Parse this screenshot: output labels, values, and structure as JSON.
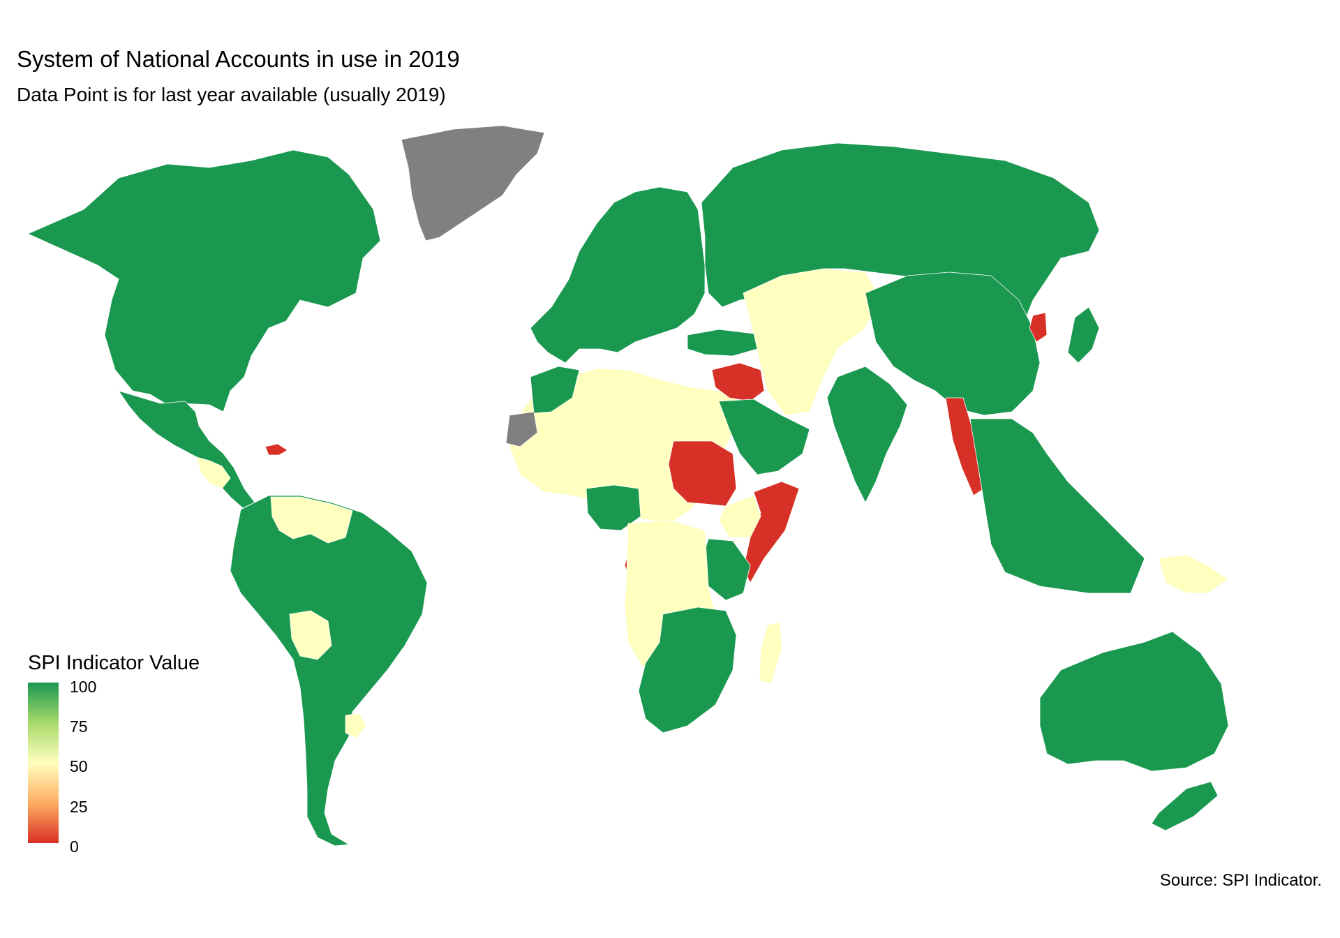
{
  "title": "System of National Accounts in use in 2019",
  "subtitle": "Data Point is for last year available (usually 2019)",
  "caption": "Source: SPI Indicator.",
  "legend": {
    "title": "SPI Indicator Value",
    "labels": [
      "100",
      "75",
      "50",
      "25",
      "0"
    ],
    "colors": [
      "#1a9850",
      "#a6d96a",
      "#ffffbf",
      "#fdae61",
      "#d73027"
    ]
  },
  "colors": {
    "high": "#1a9850",
    "mid": "#ffffbf",
    "low": "#d73027",
    "no_data": "#808080",
    "no_data_light": "#cccccc",
    "background": "#ffffff"
  },
  "regions": [
    {
      "name": "North America",
      "value": 100
    },
    {
      "name": "Greenland",
      "value": null
    },
    {
      "name": "Central America and Mexico",
      "value": 100
    },
    {
      "name": "Guatemala / Honduras",
      "value": 50
    },
    {
      "name": "Haiti / Dominican Republic",
      "value": 0
    },
    {
      "name": "South America",
      "value": 100
    },
    {
      "name": "Venezuela / Guyana",
      "value": 50
    },
    {
      "name": "Bolivia",
      "value": 50
    },
    {
      "name": "Uruguay",
      "value": 50
    },
    {
      "name": "Europe",
      "value": 100
    },
    {
      "name": "Russia",
      "value": 100
    },
    {
      "name": "North and West Africa",
      "value": 50
    },
    {
      "name": "Western Sahara",
      "value": null
    },
    {
      "name": "Morocco",
      "value": 100
    },
    {
      "name": "Nigeria / Ghana",
      "value": 100
    },
    {
      "name": "Sudan",
      "value": 0
    },
    {
      "name": "Somalia",
      "value": 0
    },
    {
      "name": "Ethiopia",
      "value": 50
    },
    {
      "name": "East Africa",
      "value": 100
    },
    {
      "name": "Congo",
      "value": 0
    },
    {
      "name": "Central Africa",
      "value": 50
    },
    {
      "name": "Southern Africa",
      "value": 100
    },
    {
      "name": "Madagascar",
      "value": 50
    },
    {
      "name": "Middle East (Syria / Iraq)",
      "value": 0
    },
    {
      "name": "Arabian Peninsula",
      "value": 100
    },
    {
      "name": "Central Asia / Iran",
      "value": 50
    },
    {
      "name": "Turkey",
      "value": 100
    },
    {
      "name": "India",
      "value": 100
    },
    {
      "name": "China / Mongolia",
      "value": 100
    },
    {
      "name": "North Korea",
      "value": 0
    },
    {
      "name": "Japan",
      "value": 100
    },
    {
      "name": "Myanmar",
      "value": 0
    },
    {
      "name": "Southeast Asia",
      "value": 100
    },
    {
      "name": "Papua New Guinea",
      "value": 50
    },
    {
      "name": "Australia",
      "value": 100
    },
    {
      "name": "New Zealand",
      "value": 100
    }
  ]
}
